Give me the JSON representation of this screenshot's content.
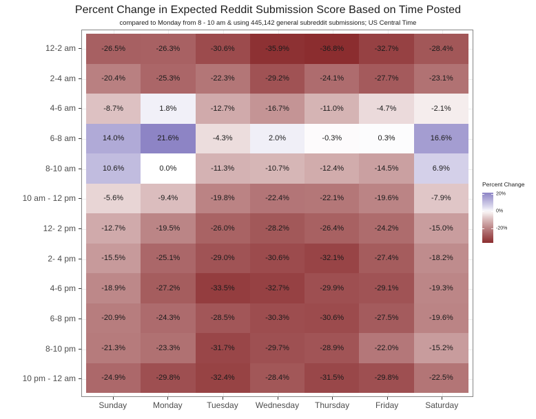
{
  "title": "Percent Change in Expected Reddit Submission Score Based on Time Posted",
  "subtitle": "compared to Monday from 8 - 10 am & using 445,142 general subreddit submissions; US Central Time",
  "chart_data": {
    "type": "heatmap",
    "x_categories": [
      "Sunday",
      "Monday",
      "Tuesday",
      "Wednesday",
      "Thursday",
      "Friday",
      "Saturday"
    ],
    "y_categories": [
      "12-2 am",
      "2-4 am",
      "4-6 am",
      "6-8 am",
      "8-10 am",
      "10 am - 12 pm",
      "12- 2 pm",
      "2- 4 pm",
      "4-6 pm",
      "6-8 pm",
      "8-10 pm",
      "10 pm - 12 am"
    ],
    "values": [
      [
        -26.5,
        -26.3,
        -30.6,
        -35.9,
        -36.8,
        -32.7,
        -28.4
      ],
      [
        -20.4,
        -25.3,
        -22.3,
        -29.2,
        -24.1,
        -27.7,
        -23.1
      ],
      [
        -8.7,
        1.8,
        -12.7,
        -16.7,
        -11.0,
        -4.7,
        -2.1
      ],
      [
        14.0,
        21.6,
        -4.3,
        2.0,
        -0.3,
        0.3,
        16.6
      ],
      [
        10.6,
        0.0,
        -11.3,
        -10.7,
        -12.4,
        -14.5,
        6.9
      ],
      [
        -5.6,
        -9.4,
        -19.8,
        -22.4,
        -22.1,
        -19.6,
        -7.9
      ],
      [
        -12.7,
        -19.5,
        -26.0,
        -28.2,
        -26.4,
        -24.2,
        -15.0
      ],
      [
        -15.5,
        -25.1,
        -29.0,
        -30.6,
        -32.1,
        -27.4,
        -18.2
      ],
      [
        -18.9,
        -27.2,
        -33.5,
        -32.7,
        -29.9,
        -29.1,
        -19.3
      ],
      [
        -20.9,
        -24.3,
        -28.5,
        -30.3,
        -30.6,
        -27.5,
        -19.6
      ],
      [
        -21.3,
        -23.3,
        -31.7,
        -29.7,
        -28.9,
        -22.0,
        -15.2
      ],
      [
        -24.9,
        -29.8,
        -32.4,
        -28.4,
        -31.5,
        -29.8,
        -22.5
      ]
    ],
    "value_suffix": "%",
    "value_decimals": 1,
    "legend": {
      "title": "Percent Change",
      "position": "right",
      "ticks": [
        {
          "label": "20%",
          "value": 20
        },
        {
          "label": "0%",
          "value": 0
        },
        {
          "label": "-20%",
          "value": -20
        }
      ]
    },
    "color_scale": {
      "low": "#8b2d2f",
      "mid": "#ffffff",
      "high": "#8d84c5",
      "min_value": -36.8,
      "max_value": 21.6,
      "gamma": 0.85
    },
    "grid": true
  }
}
